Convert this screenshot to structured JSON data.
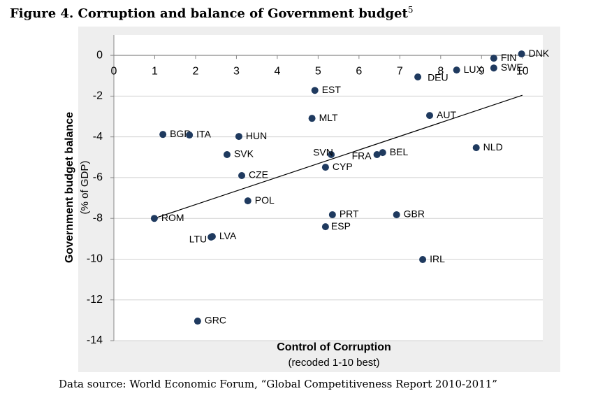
{
  "chart_data": {
    "type": "scatter",
    "title": "Figure 4. Corruption and balance of Government budget",
    "title_footnote": "5",
    "source": "Data source: World Economic Forum, “Global Competitiveness Report 2010-2011”",
    "x_label": "Control of Corruption",
    "x_sublabel": "(recoded 1-10 best)",
    "y_label": "Government budget balance",
    "y_sublabel": "(% of GDP)",
    "xlim": [
      0,
      10.5
    ],
    "ylim": [
      -14,
      1
    ],
    "xticks": [
      0,
      1,
      2,
      3,
      4,
      5,
      6,
      7,
      8,
      9,
      10
    ],
    "yticks": [
      0,
      -2,
      -4,
      -6,
      -8,
      -10,
      -12,
      -14
    ],
    "grid": true,
    "series": [
      {
        "color": "#1f3a5f",
        "labels": [
          "DNK",
          "FIN",
          "SWE",
          "LUX",
          "DEU",
          "EST",
          "AUT",
          "MLT",
          "BGR",
          "ITA",
          "HUN",
          "SVK",
          "NLD",
          "SVN",
          "FRA",
          "BEL",
          "CYP",
          "CZE",
          "POL",
          "ROM",
          "PRT",
          "GBR",
          "ESP",
          "LTU",
          "LVA",
          "IRL",
          "GRC"
        ],
        "x": [
          9.98,
          9.3,
          9.3,
          8.39,
          7.44,
          4.92,
          7.73,
          4.85,
          1.2,
          1.85,
          3.06,
          2.77,
          8.87,
          5.32,
          6.44,
          6.58,
          5.18,
          3.13,
          3.28,
          0.99,
          5.35,
          6.92,
          5.18,
          2.38,
          2.41,
          7.56,
          2.05
        ],
        "values": [
          0.07,
          -0.14,
          -0.62,
          -0.72,
          -1.06,
          -1.72,
          -2.95,
          -3.09,
          -3.88,
          -3.91,
          -3.98,
          -4.87,
          -4.53,
          -4.87,
          -4.87,
          -4.77,
          -5.49,
          -5.9,
          -7.14,
          -8.0,
          -7.82,
          -7.82,
          -8.41,
          -8.92,
          -8.89,
          -10.02,
          -13.04
        ]
      }
    ],
    "trendline": {
      "x": [
        0.99,
        10
      ],
      "values": [
        -8.0,
        -1.96
      ],
      "color": "#000000"
    }
  }
}
